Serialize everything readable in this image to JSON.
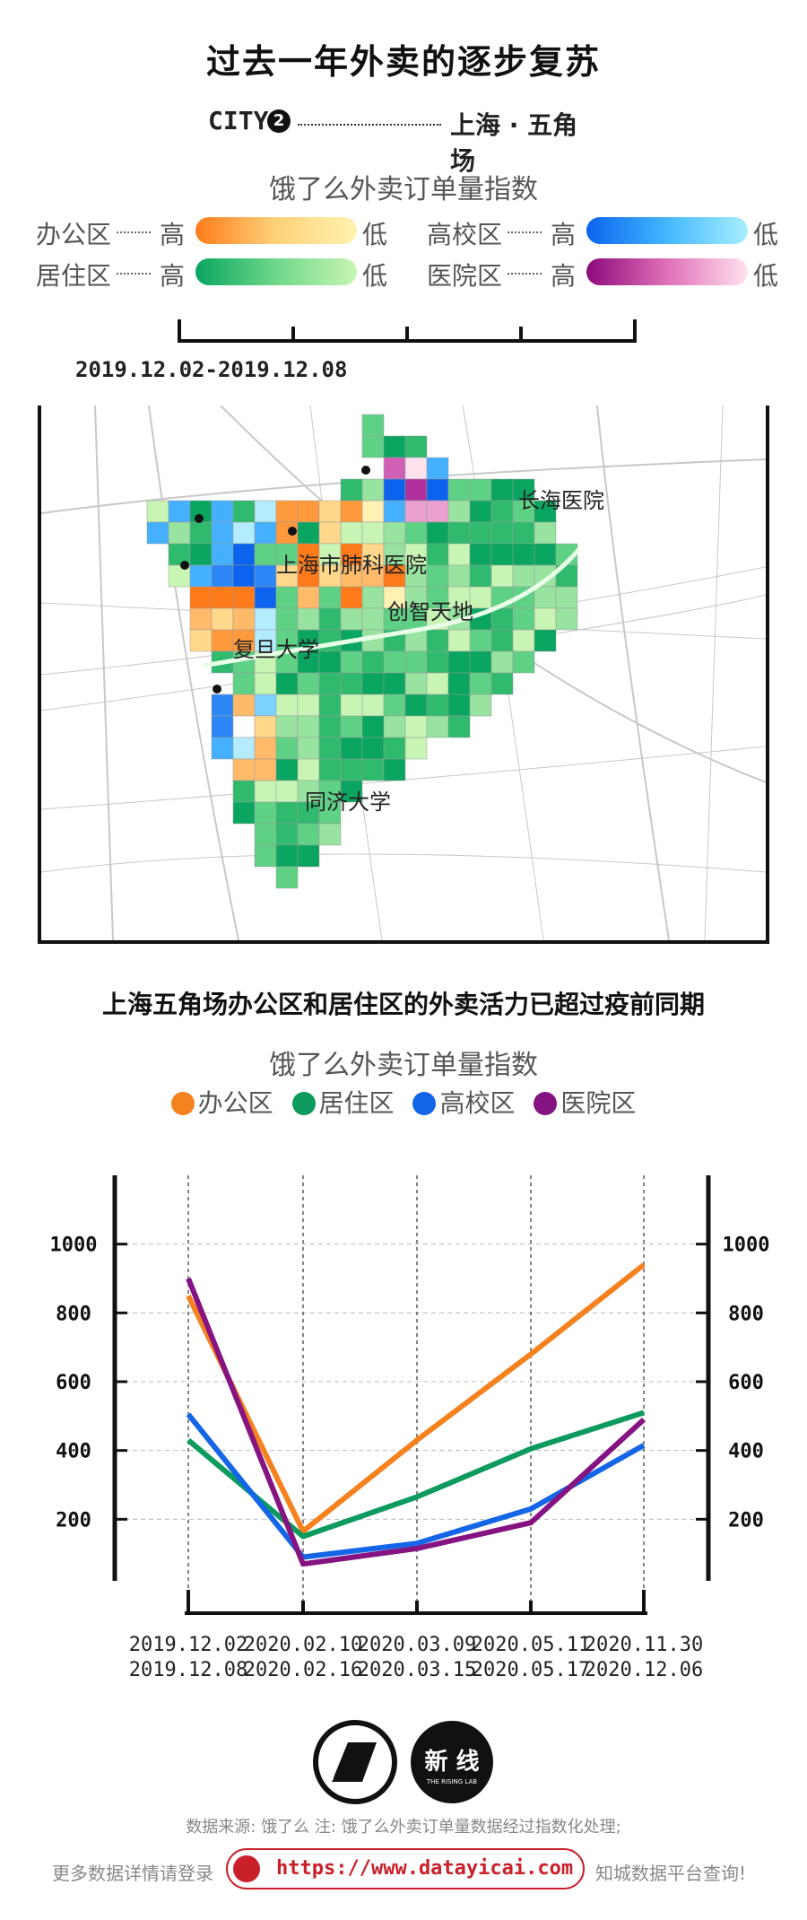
{
  "title": "过去一年外卖的逐步复苏",
  "city": {
    "label": "CITY",
    "number": "2",
    "name": "上海 · 五角场"
  },
  "map_section": {
    "subtitle": "饿了么外卖订单量指数",
    "legend": [
      {
        "name": "办公区",
        "high": "高",
        "low": "低",
        "colors": [
          "#ff7b1a",
          "#fff2b0"
        ]
      },
      {
        "name": "高校区",
        "high": "高",
        "low": "低",
        "colors": [
          "#0c63ee",
          "#a8efff"
        ]
      },
      {
        "name": "居住区",
        "high": "高",
        "low": "低",
        "colors": [
          "#0aa560",
          "#c8f5b4"
        ]
      },
      {
        "name": "医院区",
        "high": "高",
        "low": "低",
        "colors": [
          "#8c0a7c",
          "#ffe2ee"
        ]
      }
    ],
    "date_range": "2019.12.02-2019.12.08",
    "places": [
      "长海医院",
      "上海市肺科医院",
      "创智天地",
      "复旦大学",
      "同济大学"
    ]
  },
  "line_section": {
    "title": "上海五角场办公区和居住区的外卖活力已超过疫前同期",
    "subtitle": "饿了么外卖订单量指数",
    "legend": [
      "办公区",
      "居住区",
      "高校区",
      "医院区"
    ]
  },
  "chart_data": {
    "type": "line",
    "x": [
      [
        "2019.12.02",
        "2019.12.08"
      ],
      [
        "2020.02.10",
        "2020.02.16"
      ],
      [
        "2020.03.09",
        "2020.03.15"
      ],
      [
        "2020.05.11",
        "2020.05.17"
      ],
      [
        "2020.11.30",
        "2020.12.06"
      ]
    ],
    "yticks": [
      200,
      400,
      600,
      800,
      1000
    ],
    "ylim": [
      0,
      1200
    ],
    "grid": true,
    "series": [
      {
        "name": "办公区",
        "color": "#f5821f",
        "values": [
          850,
          165,
          430,
          680,
          940
        ]
      },
      {
        "name": "居住区",
        "color": "#0c9a5e",
        "values": [
          430,
          150,
          265,
          405,
          510
        ]
      },
      {
        "name": "高校区",
        "color": "#1466e6",
        "values": [
          505,
          90,
          130,
          230,
          415
        ]
      },
      {
        "name": "医院区",
        "color": "#851482",
        "values": [
          900,
          70,
          115,
          190,
          490
        ]
      }
    ]
  },
  "footer": {
    "source": "数据来源: 饿了么   注: 饿了么外卖订单量数据经过指数化处理;",
    "more": "更多数据详情请登录",
    "url": "https://www.datayicai.com",
    "platform": "知城数据平台查询!",
    "logo2_text": "新 线",
    "logo2_sub": "THE RISING LAB"
  }
}
